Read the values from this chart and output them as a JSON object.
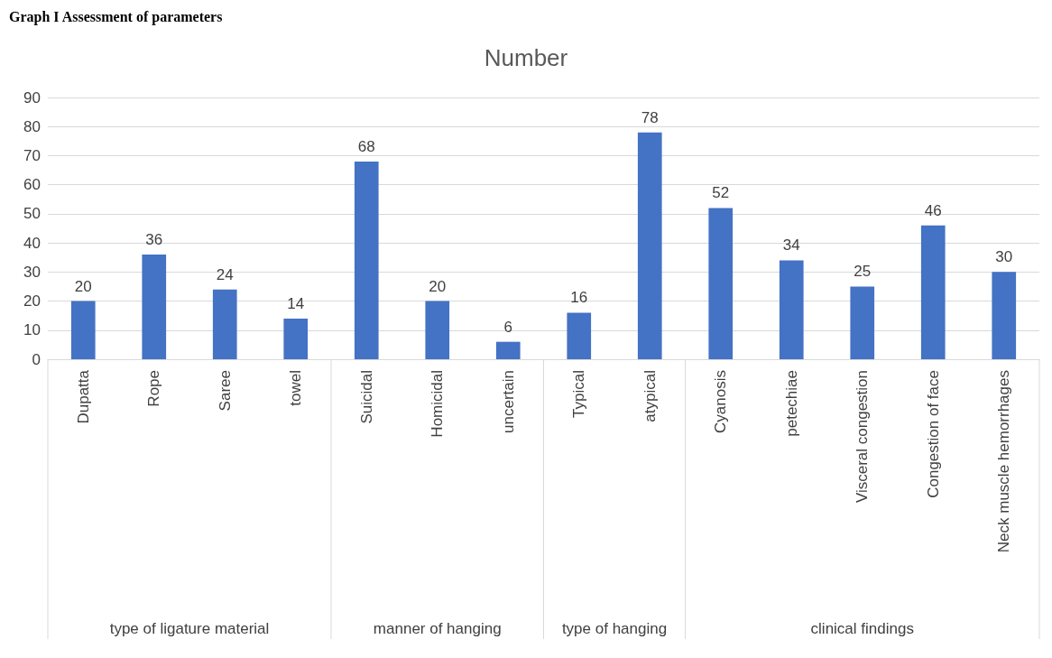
{
  "chart_data": {
    "type": "bar",
    "title": "Number",
    "categories": [
      "Dupatta",
      "Rope",
      "Saree",
      "towel",
      "Suicidal",
      "Homicidal",
      "uncertain",
      "Typical",
      "atypical",
      "Cyanosis",
      "petechiae",
      "Visceral congestion",
      "Congestion of face",
      "Neck muscle hemorrhages"
    ],
    "values": [
      20,
      36,
      24,
      14,
      68,
      20,
      6,
      16,
      78,
      52,
      34,
      25,
      46,
      30
    ],
    "color": "#4472c4",
    "ylim": [
      0,
      90
    ],
    "yticks": [
      0,
      10,
      20,
      30,
      40,
      50,
      60,
      70,
      80,
      90
    ],
    "grid": "y",
    "data_labels": true,
    "annotations": [
      "Graph I Assessment of parameters",
      "type of ligature material",
      "manner of hanging",
      "type of hanging",
      "clinical findings"
    ]
  }
}
